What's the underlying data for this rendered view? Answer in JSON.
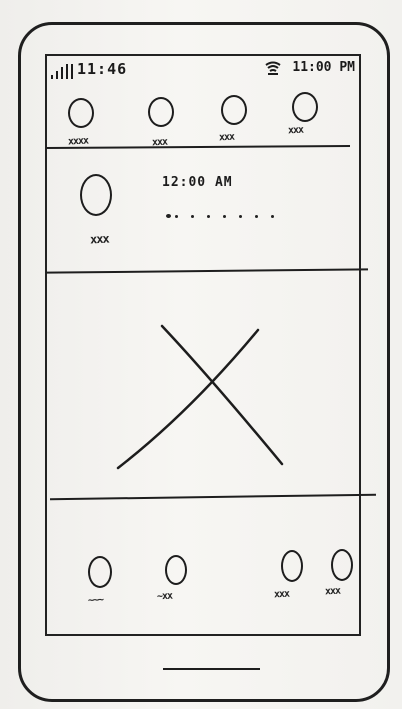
{
  "status_bar": {
    "time": "11:46",
    "clock": "11:00 PM"
  },
  "contacts": {
    "items": [
      {
        "label": "xxxx"
      },
      {
        "label": "xxx"
      },
      {
        "label": "xxx"
      },
      {
        "label": "xxx"
      }
    ]
  },
  "message": {
    "sender_label": "xxx",
    "time": "12:00 AM",
    "preview": "........"
  },
  "media": {
    "icon": "image-placeholder-icon"
  },
  "dock": {
    "items": [
      {
        "label": "~~~"
      },
      {
        "label": "~xx"
      },
      {
        "label": "xxx"
      },
      {
        "label": "xxx"
      }
    ]
  },
  "colors": {
    "ink": "#1e1e1e",
    "paper": "#f4f3f0"
  }
}
